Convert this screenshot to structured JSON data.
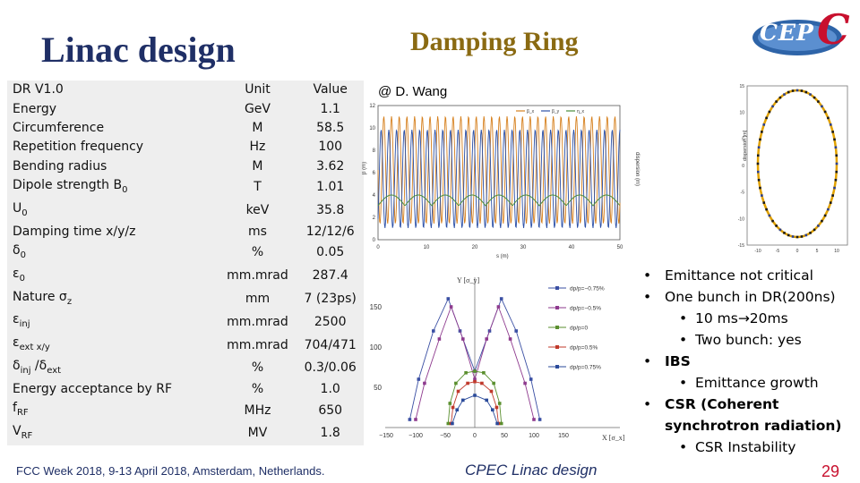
{
  "header": {
    "title": "Linac design",
    "heading": "Damping Ring",
    "logo_text": "CEP",
    "logo_mark": "C",
    "credit": "@ D. Wang"
  },
  "table": {
    "col_unit": "Unit",
    "col_value": "Value",
    "rows": [
      {
        "param": "DR V1.0",
        "unit": "",
        "value": ""
      },
      {
        "param": "Energy",
        "unit": "GeV",
        "value": "1.1"
      },
      {
        "param": "Circumference",
        "unit": "M",
        "value": "58.5"
      },
      {
        "param": "Repetition frequency",
        "unit": "Hz",
        "value": "100"
      },
      {
        "param": "Bending radius",
        "unit": "M",
        "value": "3.62"
      },
      {
        "param": "Dipole strength B",
        "sub": "0",
        "unit": "T",
        "value": "1.01"
      },
      {
        "param": "U",
        "sub": "0",
        "unit": "keV",
        "value": "35.8"
      },
      {
        "param": "Damping time x/y/z",
        "unit": "ms",
        "value": "12/12/6"
      },
      {
        "param": "δ",
        "sub": "0",
        "unit": "%",
        "value": "0.05"
      },
      {
        "param": "ε",
        "sub": "0",
        "unit": "mm.mrad",
        "value": "287.4"
      },
      {
        "param": "Nature σ",
        "sub": "z",
        "unit": "mm",
        "value": "7 (23ps)"
      },
      {
        "param": "ε",
        "sub": "inj",
        "unit": "mm.mrad",
        "value": "2500"
      },
      {
        "param": "ε",
        "sub": "ext x/y",
        "unit": "mm.mrad",
        "value": "704/471"
      },
      {
        "param": "δ",
        "sub": "inj",
        "after": " /δ",
        "sub2": "ext",
        "unit": "%",
        "value": "0.3/0.06"
      },
      {
        "param": "Energy acceptance by RF",
        "unit": "%",
        "value": "1.0"
      },
      {
        "param": "f",
        "sub": "RF",
        "unit": "MHz",
        "value": "650"
      },
      {
        "param": "V",
        "sub": "RF",
        "unit": "MV",
        "value": "1.8"
      }
    ]
  },
  "beta_plot": {
    "legend": [
      "β_x",
      "β_y",
      "η_x"
    ],
    "y_ticks": [
      "12",
      "10",
      "8",
      "6",
      "4",
      "2",
      "0"
    ],
    "x_ticks": [
      "0",
      "10",
      "20",
      "30",
      "40",
      "50"
    ],
    "xlabel": "s (m)",
    "ylabel": "β (m)",
    "y2label": "dispersion (m)"
  },
  "ring_plot": {
    "y_ticks": [
      "15",
      "10",
      "5",
      "0",
      "-5",
      "-10",
      "-15"
    ],
    "x_ticks": [
      "-10",
      "-5",
      "0",
      "5",
      "10"
    ],
    "ylabel": "dispersion [m]"
  },
  "aperture_plot": {
    "ylabel": "Y [σ_y]",
    "xlabel": "X [σ_x]",
    "y_ticks": [
      "150",
      "100",
      "50"
    ],
    "x_ticks": [
      "−150",
      "−100",
      "−50",
      "0",
      "50",
      "100",
      "150"
    ],
    "legend": [
      "dp/p=−0.75%",
      "dp/p=−0.5%",
      "dp/p=0",
      "dp/p=0.5%",
      "dp/p=0.75%"
    ],
    "colors": [
      "#3a4fa3",
      "#8e3a8e",
      "#5a8f2e",
      "#c0392b",
      "#2a4a9a"
    ]
  },
  "bullets": [
    {
      "level": 1,
      "text": "Emittance not critical",
      "bold": false
    },
    {
      "level": 1,
      "text": "One bunch in DR(200ns)",
      "bold": false
    },
    {
      "level": 2,
      "text": "10 ms→20ms",
      "bold": false
    },
    {
      "level": 2,
      "text": "Two bunch: yes",
      "bold": false
    },
    {
      "level": 1,
      "text": "IBS",
      "bold": true
    },
    {
      "level": 2,
      "text": "Emittance growth",
      "bold": false
    },
    {
      "level": 1,
      "text": "CSR (Coherent synchrotron radiation)",
      "bold": true
    },
    {
      "level": 2,
      "text": "CSR Instability",
      "bold": false
    }
  ],
  "footer": {
    "left": "FCC Week 2018, 9-13 April 2018, Amsterdam, Netherlands.",
    "center": "CPEC Linac design",
    "page": "29"
  }
}
